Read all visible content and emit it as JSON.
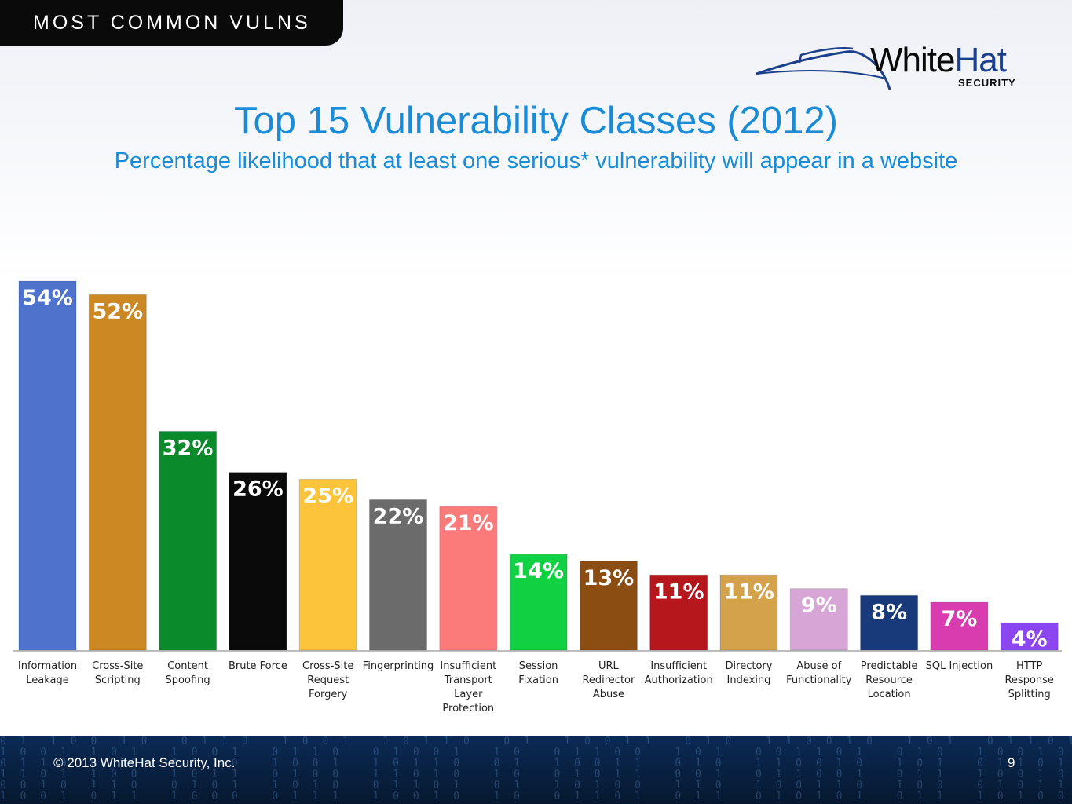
{
  "header": {
    "section_label": "MOST COMMON VULNS"
  },
  "logo": {
    "word_white": "White",
    "word_hat": "Hat",
    "sub": "SECURITY"
  },
  "footer": {
    "copyright": "© 2013 WhiteHat Security, Inc.",
    "page_number": "9"
  },
  "colors": {
    "title": "#1a8bd6",
    "footer_bg": "#0b2a55"
  },
  "chart_data": {
    "type": "bar",
    "title": "Top 15 Vulnerability Classes (2012)",
    "subtitle": "Percentage likelihood that at least one serious* vulnerability will appear in a website",
    "xlabel": "",
    "ylabel": "",
    "ylim": [
      0,
      54
    ],
    "grid": false,
    "legend": "none",
    "categories": [
      "Information Leakage",
      "Cross-Site Scripting",
      "Content Spoofing",
      "Brute Force",
      "Cross-Site Request Forgery",
      "Fingerprinting",
      "Insufficient Transport Layer Protection",
      "Session Fixation",
      "URL Redirector Abuse",
      "Insufficient Authorization",
      "Directory Indexing",
      "Abuse of Functionality",
      "Predictable Resource Location",
      "SQL Injection",
      "HTTP Response Splitting"
    ],
    "label_lines": [
      [
        "Information",
        "Leakage"
      ],
      [
        "Cross-Site",
        "Scripting"
      ],
      [
        "Content",
        "Spoofing"
      ],
      [
        "Brute Force"
      ],
      [
        "Cross-Site",
        "Request",
        "Forgery"
      ],
      [
        "Fingerprinting"
      ],
      [
        "Insufficient",
        "Transport",
        "Layer",
        "Protection"
      ],
      [
        "Session",
        "Fixation"
      ],
      [
        "URL",
        "Redirector",
        "Abuse"
      ],
      [
        "Insufficient",
        "Authorization"
      ],
      [
        "Directory",
        "Indexing"
      ],
      [
        "Abuse of",
        "Functionality"
      ],
      [
        "Predictable",
        "Resource",
        "Location"
      ],
      [
        "SQL Injection"
      ],
      [
        "HTTP",
        "Response",
        "Splitting"
      ]
    ],
    "values": [
      54,
      52,
      32,
      26,
      25,
      22,
      21,
      14,
      13,
      11,
      11,
      9,
      8,
      7,
      4
    ],
    "value_labels": [
      "54%",
      "52%",
      "32%",
      "26%",
      "25%",
      "22%",
      "21%",
      "14%",
      "13%",
      "11%",
      "11%",
      "9%",
      "8%",
      "7%",
      "4%"
    ],
    "colors": [
      "#4f72cc",
      "#cc8822",
      "#0b8a2c",
      "#0a0a0a",
      "#fbc43a",
      "#6b6b6b",
      "#fb7b7b",
      "#11d143",
      "#8b4d12",
      "#b5171c",
      "#d3a24a",
      "#d7a6d6",
      "#18397a",
      "#d93caf",
      "#8c46f1"
    ]
  }
}
